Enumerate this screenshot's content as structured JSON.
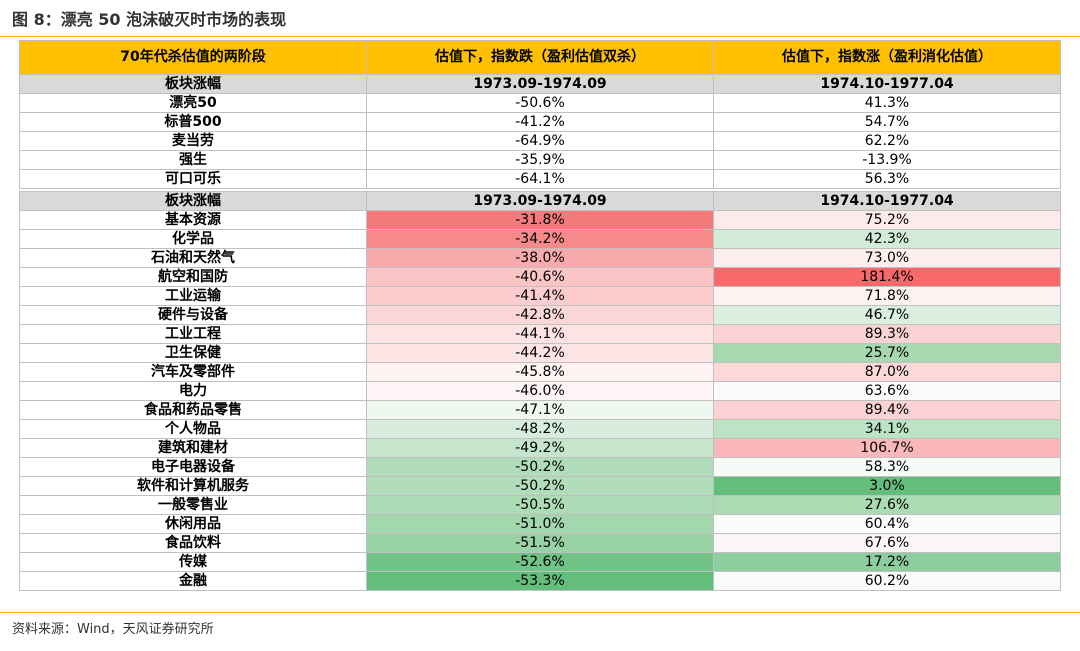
{
  "figure": {
    "title": "图 8：漂亮 50 泡沫破灭时市场的表现",
    "source": "资料来源：Wind，天风证券研究所"
  },
  "table": {
    "headers": [
      "70年代杀估值的两阶段",
      "估值下，指数跌（盈利估值双杀）",
      "估值下，指数涨（盈利消化估值）"
    ],
    "section1": {
      "header": [
        "板块涨幅",
        "1973.09-1974.09",
        "1974.10-1977.04"
      ],
      "rows": [
        {
          "name": "漂亮50",
          "v1": "-50.6%",
          "v2": "41.3%"
        },
        {
          "name": "标普500",
          "v1": "-41.2%",
          "v2": "54.7%"
        },
        {
          "name": "麦当劳",
          "v1": "-64.9%",
          "v2": "62.2%"
        },
        {
          "name": "强生",
          "v1": "-35.9%",
          "v2": "-13.9%"
        },
        {
          "name": "可口可乐",
          "v1": "-64.1%",
          "v2": "56.3%"
        }
      ]
    },
    "section2": {
      "header": [
        "板块涨幅",
        "1973.09-1974.09",
        "1974.10-1977.04"
      ],
      "rows": [
        {
          "name": "基本资源",
          "v1": "-31.8%",
          "v2": "75.2%",
          "c1": "#f47a7b",
          "c2": "#fdeaeb"
        },
        {
          "name": "化学品",
          "v1": "-34.2%",
          "v2": "42.3%",
          "c1": "#f68a8b",
          "c2": "#d3ecd9"
        },
        {
          "name": "石油和天然气",
          "v1": "-38.0%",
          "v2": "73.0%",
          "c1": "#f9aaac",
          "c2": "#fdeff0"
        },
        {
          "name": "航空和国防",
          "v1": "-40.6%",
          "v2": "181.4%",
          "c1": "#fbc4c5",
          "c2": "#f8696b"
        },
        {
          "name": "工业运输",
          "v1": "-41.4%",
          "v2": "71.8%",
          "c1": "#fcccce",
          "c2": "#fdf1f2"
        },
        {
          "name": "硬件与设备",
          "v1": "-42.8%",
          "v2": "46.7%",
          "c1": "#fcd7d8",
          "c2": "#daefdf"
        },
        {
          "name": "工业工程",
          "v1": "-44.1%",
          "v2": "89.3%",
          "c1": "#fde3e4",
          "c2": "#fbd3d4"
        },
        {
          "name": "卫生保健",
          "v1": "-44.2%",
          "v2": "25.7%",
          "c1": "#fde4e5",
          "c2": "#a6d9b0"
        },
        {
          "name": "汽车及零部件",
          "v1": "-45.8%",
          "v2": "87.0%",
          "c1": "#fef2f3",
          "c2": "#fcd8d9"
        },
        {
          "name": "电力",
          "v1": "-46.0%",
          "v2": "63.6%",
          "c1": "#fef4f5",
          "c2": "#fdfafc"
        },
        {
          "name": "食品和药品零售",
          "v1": "-47.1%",
          "v2": "89.4%",
          "c1": "#eef7f0",
          "c2": "#fbd3d4"
        },
        {
          "name": "个人物品",
          "v1": "-48.2%",
          "v2": "34.1%",
          "c1": "#d8eddd",
          "c2": "#bde3c5"
        },
        {
          "name": "建筑和建材",
          "v1": "-49.2%",
          "v2": "106.7%",
          "c1": "#c5e6cc",
          "c2": "#fab8ba"
        },
        {
          "name": "电子电器设备",
          "v1": "-50.2%",
          "v2": "58.3%",
          "c1": "#b2ddbb",
          "c2": "#f6fbf7"
        },
        {
          "name": "软件和计算机服务",
          "v1": "-50.2%",
          "v2": "3.0%",
          "c1": "#b2ddbb",
          "c2": "#63be7b"
        },
        {
          "name": "一般零售业",
          "v1": "-50.5%",
          "v2": "27.6%",
          "c1": "#acdbb6",
          "c2": "#aadbb3"
        },
        {
          "name": "休闲用品",
          "v1": "-51.0%",
          "v2": "60.4%",
          "c1": "#a3d7ae",
          "c2": "#f9fcfa"
        },
        {
          "name": "食品饮料",
          "v1": "-51.5%",
          "v2": "67.6%",
          "c1": "#99d3a5",
          "c2": "#fdf6f7"
        },
        {
          "name": "传媒",
          "v1": "-52.6%",
          "v2": "17.2%",
          "c1": "#71c387",
          "c2": "#8ccea0"
        },
        {
          "name": "金融",
          "v1": "-53.3%",
          "v2": "60.2%",
          "c1": "#63be7b",
          "c2": "#f9fcfa"
        }
      ]
    }
  }
}
